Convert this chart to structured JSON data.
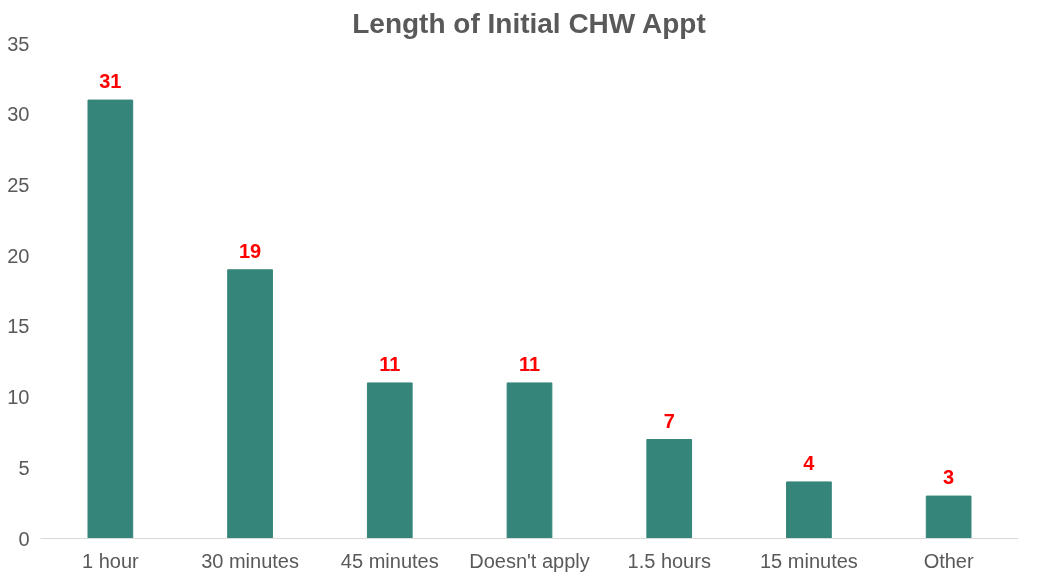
{
  "chart_data": {
    "type": "bar",
    "title": "Length of Initial CHW Appt",
    "categories": [
      "1 hour",
      "30 minutes",
      "45 minutes",
      "Doesn't apply",
      "1.5 hours",
      "15 minutes",
      "Other"
    ],
    "values": [
      31,
      19,
      11,
      11,
      7,
      4,
      3
    ],
    "color": "#35857a",
    "ylim": [
      0,
      35
    ],
    "yticks": [
      0,
      5,
      10,
      15,
      20,
      25,
      30,
      35
    ],
    "grid": false,
    "data_labels": true
  }
}
